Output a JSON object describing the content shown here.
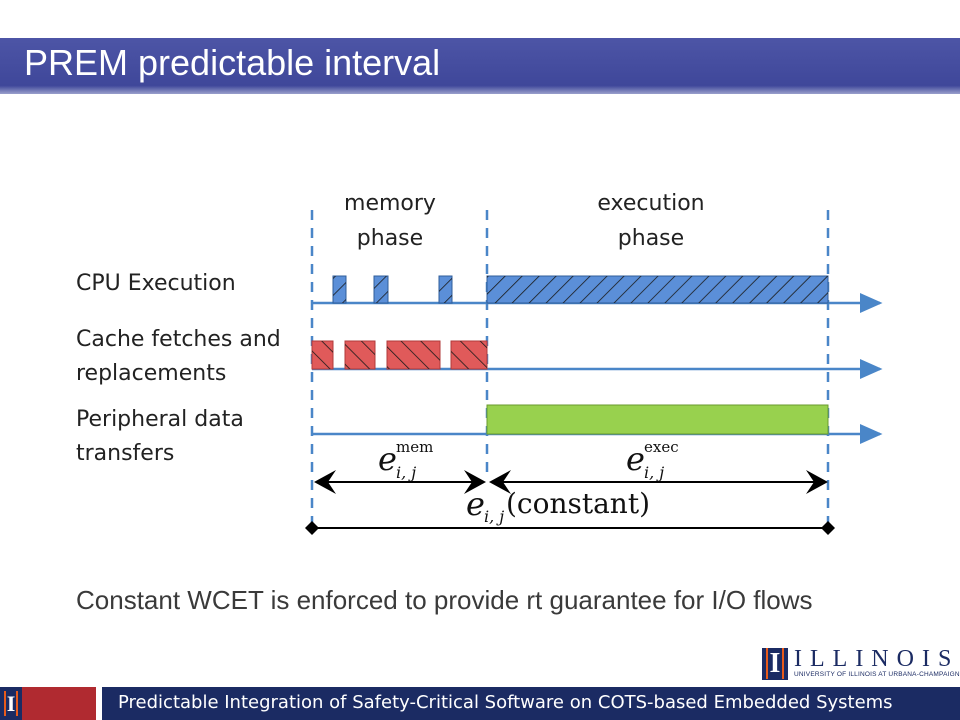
{
  "slide": {
    "title": "PREM predictable interval",
    "caption": "Constant WCET is enforced to provide rt guarantee for I/O flows",
    "footer": "Predictable Integration of Safety-Critical Software on COTS-based Embedded Systems",
    "logo_text": "ILLINOIS",
    "logo_subtext": "UNIVERSITY OF ILLINOIS AT URBANA-CHAMPAIGN",
    "logo_glyph": "I",
    "icons": [
      "illinois-block-i-icon"
    ]
  },
  "diagram": {
    "phase_labels": {
      "memory_line1": "memory",
      "memory_line2": "phase",
      "execution_line1": "execution",
      "execution_line2": "phase"
    },
    "rows": {
      "cpu": "CPU Execution",
      "cache_line1": "Cache fetches and",
      "cache_line2": "replacements",
      "peripheral_line1": "Peripheral data",
      "peripheral_line2": "transfers"
    },
    "annotations": {
      "e_base": "e",
      "mem_sup": "mem",
      "exec_sup": "exec",
      "sub": "i, j",
      "constant": "(constant)"
    },
    "colors": {
      "cpu_fill": "#5b8fd8",
      "cache_fill": "#e05a5a",
      "peripheral_fill": "#98d14e",
      "timeline": "#4a86c8",
      "title_bar": "#434b9e",
      "footer": "#1b2b63"
    }
  }
}
